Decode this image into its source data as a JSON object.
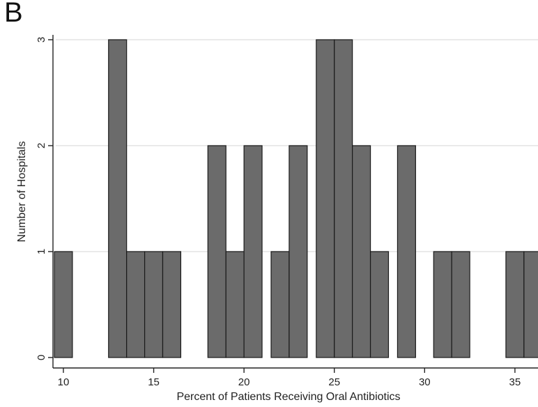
{
  "panel_label": "B",
  "chart_data": {
    "type": "bar",
    "title": "",
    "xlabel": "Percent of Patients Receiving Oral Antibiotics",
    "ylabel": "Number of Hospitals",
    "xlim": [
      9.5,
      36.2
    ],
    "ylim": [
      0,
      3
    ],
    "xticks": [
      10,
      15,
      20,
      25,
      30,
      35
    ],
    "yticks": [
      0,
      1,
      2,
      3
    ],
    "grid": "horizontal",
    "bin_width": 1,
    "bars": [
      {
        "x": 10,
        "value": 1
      },
      {
        "x": 13,
        "value": 3
      },
      {
        "x": 14,
        "value": 1
      },
      {
        "x": 15,
        "value": 1
      },
      {
        "x": 16,
        "value": 1
      },
      {
        "x": 18.5,
        "value": 2
      },
      {
        "x": 19.5,
        "value": 1
      },
      {
        "x": 20.5,
        "value": 2
      },
      {
        "x": 22,
        "value": 1
      },
      {
        "x": 23,
        "value": 2
      },
      {
        "x": 24.5,
        "value": 3
      },
      {
        "x": 25.5,
        "value": 3
      },
      {
        "x": 26.5,
        "value": 2
      },
      {
        "x": 27.5,
        "value": 1
      },
      {
        "x": 29,
        "value": 2
      },
      {
        "x": 31,
        "value": 1
      },
      {
        "x": 32,
        "value": 1
      },
      {
        "x": 35,
        "value": 1
      },
      {
        "x": 36,
        "value": 1
      }
    ],
    "colors": {
      "bar_fill": "#6b6b6b",
      "bar_stroke": "#1a1a1a",
      "grid": "#e3e3e3",
      "axis": "#222222"
    }
  }
}
